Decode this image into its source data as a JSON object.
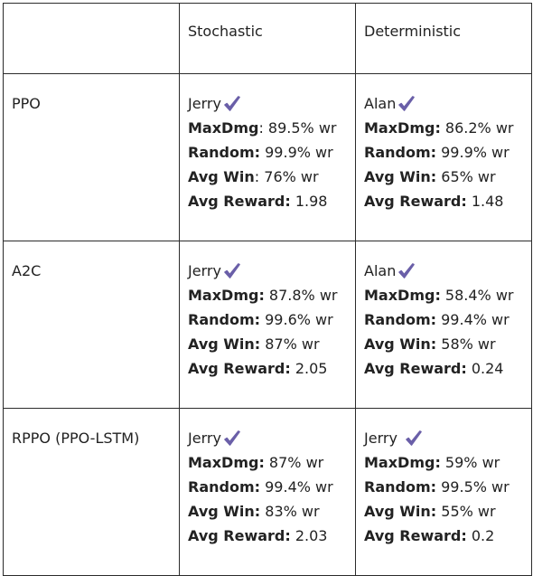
{
  "table": {
    "headers": [
      "",
      "Stochastic",
      "Deterministic"
    ],
    "accent_color": "#6a5fa8",
    "check_icon": "checkmark-icon",
    "rows": [
      {
        "algorithm": "PPO",
        "stochastic": {
          "winner": "Jerry",
          "maxdmg_label": "MaxDmg",
          "maxdmg_sep": ":",
          "maxdmg_value": " 89.5% wr",
          "random_label": "Random:",
          "random_value": " 99.9% wr",
          "avgwin_label": "Avg Win",
          "avgwin_sep": ":",
          "avgwin_value": " 76% wr",
          "avgreward_label": "Avg Reward:",
          "avgreward_value": " 1.98"
        },
        "deterministic": {
          "winner": "Alan",
          "maxdmg_label": "MaxDmg:",
          "maxdmg_sep": "",
          "maxdmg_value": " 86.2% wr",
          "random_label": "Random:",
          "random_value": " 99.9% wr",
          "avgwin_label": "Avg Win:",
          "avgwin_sep": "",
          "avgwin_value": " 65% wr",
          "avgreward_label": "Avg Reward:",
          "avgreward_value": " 1.48"
        }
      },
      {
        "algorithm": "A2C",
        "stochastic": {
          "winner": "Jerry",
          "maxdmg_label": "MaxDmg:",
          "maxdmg_sep": "",
          "maxdmg_value": " 87.8% wr",
          "random_label": "Random:",
          "random_value": " 99.6% wr",
          "avgwin_label": "Avg Win:",
          "avgwin_sep": "",
          "avgwin_value": " 87% wr",
          "avgreward_label": "Avg Reward:",
          "avgreward_value": " 2.05"
        },
        "deterministic": {
          "winner": "Alan",
          "maxdmg_label": "MaxDmg:",
          "maxdmg_sep": "",
          "maxdmg_value": " 58.4% wr",
          "random_label": "Random:",
          "random_value": " 99.4% wr",
          "avgwin_label": "Avg Win:",
          "avgwin_sep": "",
          "avgwin_value": " 58% wr",
          "avgreward_label": "Avg Reward:",
          "avgreward_value": " 0.24"
        }
      },
      {
        "algorithm": "RPPO (PPO-LSTM)",
        "stochastic": {
          "winner": "Jerry",
          "maxdmg_label": "MaxDmg:",
          "maxdmg_sep": "",
          "maxdmg_value": " 87% wr",
          "random_label": "Random:",
          "random_value": " 99.4% wr",
          "avgwin_label": "Avg Win:",
          "avgwin_sep": "",
          "avgwin_value": " 83% wr",
          "avgreward_label": "Avg Reward:",
          "avgreward_value": " 2.03"
        },
        "deterministic": {
          "winner": "Jerry",
          "maxdmg_label": "MaxDmg:",
          "maxdmg_sep": "",
          "maxdmg_value": " 59% wr",
          "random_label": "Random:",
          "random_value": " 99.5% wr",
          "avgwin_label": "Avg Win:",
          "avgwin_sep": "",
          "avgwin_value": " 55% wr",
          "avgreward_label": "Avg Reward:",
          "avgreward_value": " 0.2"
        }
      }
    ]
  }
}
